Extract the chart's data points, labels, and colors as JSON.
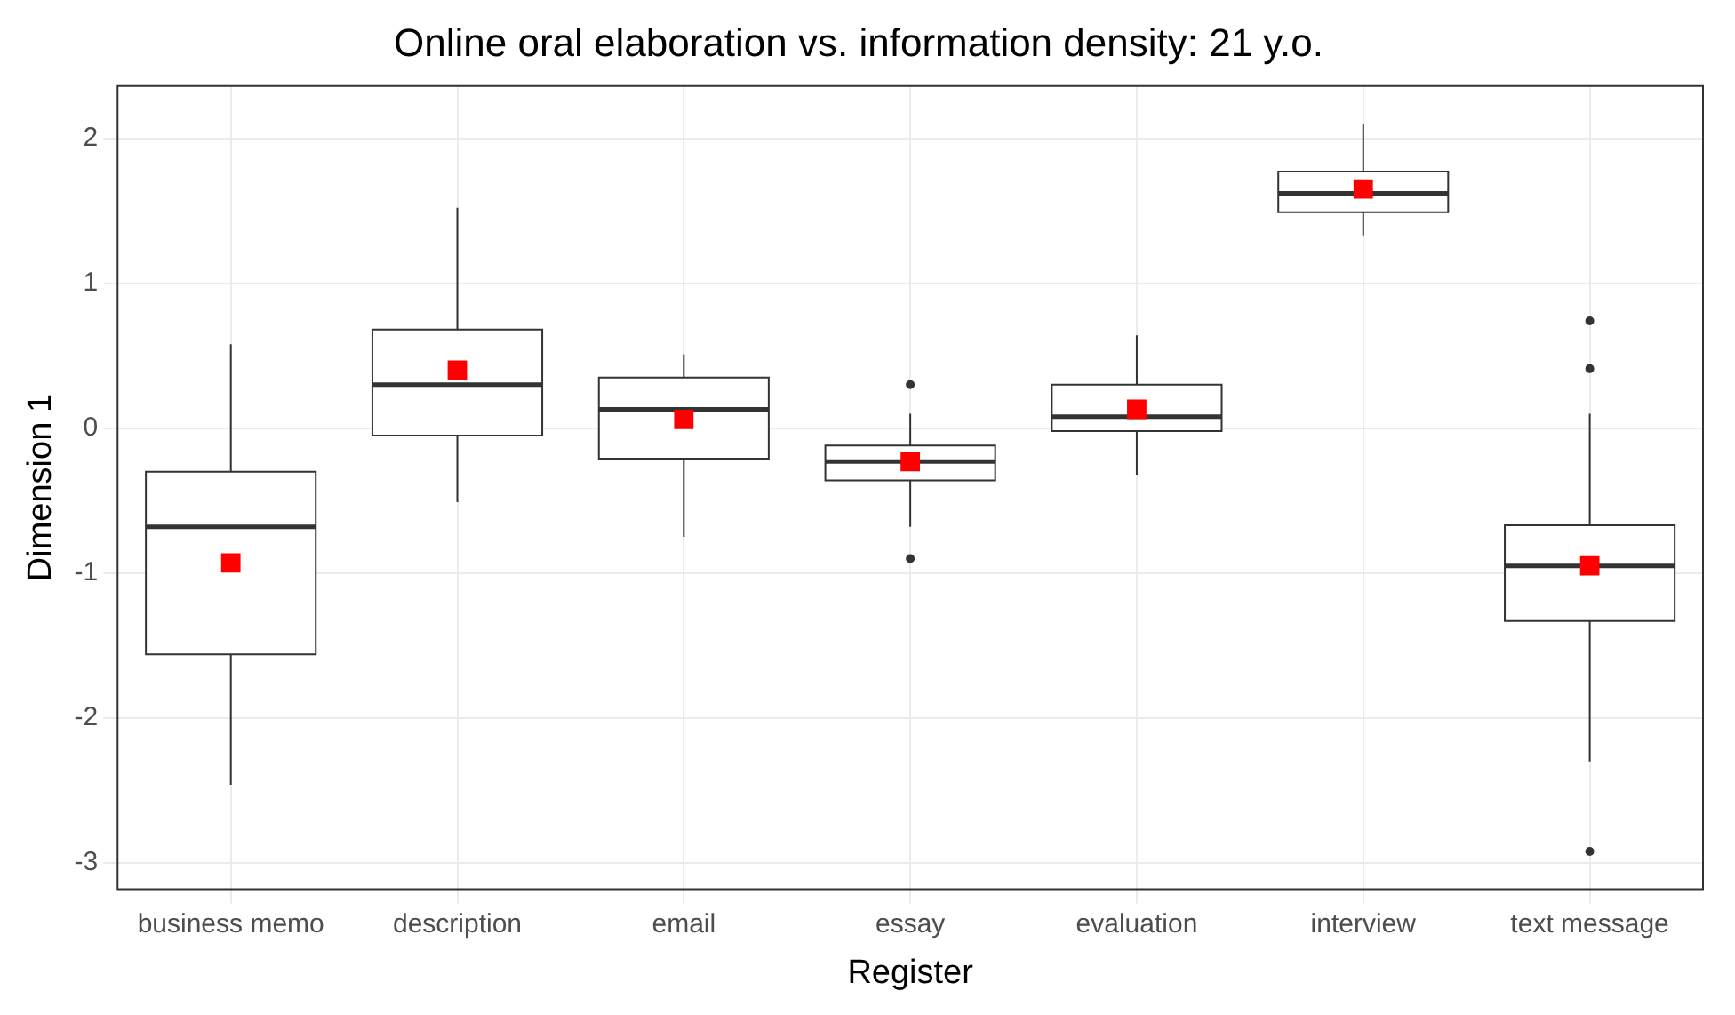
{
  "chart_data": {
    "type": "box",
    "title": "Online oral elaboration vs. information density: 21 y.o.",
    "xlabel": "Register",
    "ylabel": "Dimension 1",
    "categories": [
      "business memo",
      "description",
      "email",
      "essay",
      "evaluation",
      "interview",
      "text message"
    ],
    "boxes": [
      {
        "low": -2.46,
        "q1": -1.56,
        "median": -0.68,
        "q3": -0.3,
        "high": 0.58
      },
      {
        "low": -0.51,
        "q1": -0.05,
        "median": 0.3,
        "q3": 0.68,
        "high": 1.52
      },
      {
        "low": -0.75,
        "q1": -0.21,
        "median": 0.13,
        "q3": 0.35,
        "high": 0.51
      },
      {
        "low": -0.68,
        "q1": -0.36,
        "median": -0.23,
        "q3": -0.12,
        "high": 0.1,
        "outliers": [
          0.3,
          -0.9
        ]
      },
      {
        "low": -0.32,
        "q1": -0.02,
        "median": 0.08,
        "q3": 0.3,
        "high": 0.64
      },
      {
        "low": 1.33,
        "q1": 1.49,
        "median": 1.62,
        "q3": 1.77,
        "high": 2.1
      },
      {
        "low": -2.3,
        "q1": -1.33,
        "median": -0.95,
        "q3": -0.67,
        "high": 0.1,
        "outliers": [
          0.74,
          0.41,
          -2.92
        ]
      }
    ],
    "color": "#ffffff",
    "series": [
      {
        "type": "scatter",
        "color": "#ff0000",
        "x": [
          "business memo",
          "description",
          "email",
          "essay",
          "evaluation",
          "interview",
          "text message"
        ],
        "values": [
          -0.93,
          0.4,
          0.06,
          -0.23,
          0.13,
          1.65,
          -0.95
        ]
      }
    ],
    "marker": "square",
    "ylim": [
      -3.18,
      2.36
    ],
    "yticks": [
      -3,
      -2,
      -1,
      0,
      1,
      2
    ],
    "grid": true
  }
}
